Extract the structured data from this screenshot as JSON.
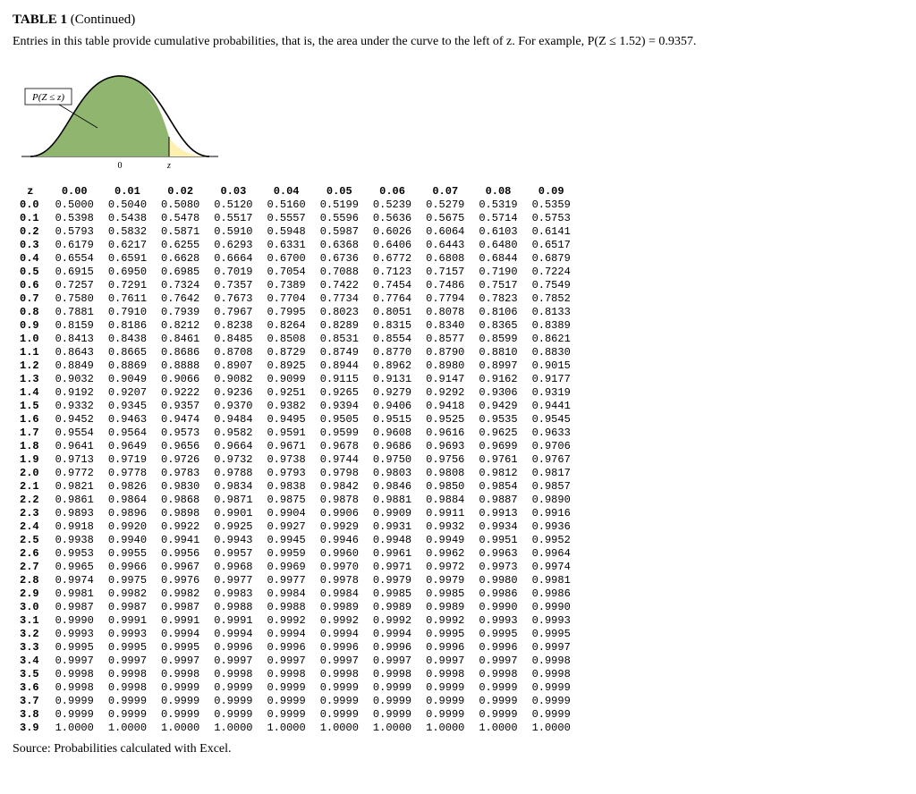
{
  "title_label": "TABLE 1",
  "title_paren": "(Continued)",
  "description": "Entries in this table provide cumulative probabilities, that is, the area under the curve to the left of z. For example, P(Z ≤ 1.52) = 0.9357.",
  "figure": {
    "caption": "P(Z ≤ z)",
    "axis_labels": {
      "zero": "0",
      "z": "z"
    },
    "fill_color": "#8fb56e",
    "tail_color": "#fff0b0",
    "stroke_color": "#000000",
    "axis_color": "#000000",
    "background": "#ffffff"
  },
  "table": {
    "header_corner": "z",
    "col_headers": [
      "0.00",
      "0.01",
      "0.02",
      "0.03",
      "0.04",
      "0.05",
      "0.06",
      "0.07",
      "0.08",
      "0.09"
    ],
    "row_labels": [
      "0.0",
      "0.1",
      "0.2",
      "0.3",
      "0.4",
      "0.5",
      "0.6",
      "0.7",
      "0.8",
      "0.9",
      "1.0",
      "1.1",
      "1.2",
      "1.3",
      "1.4",
      "1.5",
      "1.6",
      "1.7",
      "1.8",
      "1.9",
      "2.0",
      "2.1",
      "2.2",
      "2.3",
      "2.4",
      "2.5",
      "2.6",
      "2.7",
      "2.8",
      "2.9",
      "3.0",
      "3.1",
      "3.2",
      "3.3",
      "3.4",
      "3.5",
      "3.6",
      "3.7",
      "3.8",
      "3.9"
    ],
    "rows": [
      [
        "0.5000",
        "0.5040",
        "0.5080",
        "0.5120",
        "0.5160",
        "0.5199",
        "0.5239",
        "0.5279",
        "0.5319",
        "0.5359"
      ],
      [
        "0.5398",
        "0.5438",
        "0.5478",
        "0.5517",
        "0.5557",
        "0.5596",
        "0.5636",
        "0.5675",
        "0.5714",
        "0.5753"
      ],
      [
        "0.5793",
        "0.5832",
        "0.5871",
        "0.5910",
        "0.5948",
        "0.5987",
        "0.6026",
        "0.6064",
        "0.6103",
        "0.6141"
      ],
      [
        "0.6179",
        "0.6217",
        "0.6255",
        "0.6293",
        "0.6331",
        "0.6368",
        "0.6406",
        "0.6443",
        "0.6480",
        "0.6517"
      ],
      [
        "0.6554",
        "0.6591",
        "0.6628",
        "0.6664",
        "0.6700",
        "0.6736",
        "0.6772",
        "0.6808",
        "0.6844",
        "0.6879"
      ],
      [
        "0.6915",
        "0.6950",
        "0.6985",
        "0.7019",
        "0.7054",
        "0.7088",
        "0.7123",
        "0.7157",
        "0.7190",
        "0.7224"
      ],
      [
        "0.7257",
        "0.7291",
        "0.7324",
        "0.7357",
        "0.7389",
        "0.7422",
        "0.7454",
        "0.7486",
        "0.7517",
        "0.7549"
      ],
      [
        "0.7580",
        "0.7611",
        "0.7642",
        "0.7673",
        "0.7704",
        "0.7734",
        "0.7764",
        "0.7794",
        "0.7823",
        "0.7852"
      ],
      [
        "0.7881",
        "0.7910",
        "0.7939",
        "0.7967",
        "0.7995",
        "0.8023",
        "0.8051",
        "0.8078",
        "0.8106",
        "0.8133"
      ],
      [
        "0.8159",
        "0.8186",
        "0.8212",
        "0.8238",
        "0.8264",
        "0.8289",
        "0.8315",
        "0.8340",
        "0.8365",
        "0.8389"
      ],
      [
        "0.8413",
        "0.8438",
        "0.8461",
        "0.8485",
        "0.8508",
        "0.8531",
        "0.8554",
        "0.8577",
        "0.8599",
        "0.8621"
      ],
      [
        "0.8643",
        "0.8665",
        "0.8686",
        "0.8708",
        "0.8729",
        "0.8749",
        "0.8770",
        "0.8790",
        "0.8810",
        "0.8830"
      ],
      [
        "0.8849",
        "0.8869",
        "0.8888",
        "0.8907",
        "0.8925",
        "0.8944",
        "0.8962",
        "0.8980",
        "0.8997",
        "0.9015"
      ],
      [
        "0.9032",
        "0.9049",
        "0.9066",
        "0.9082",
        "0.9099",
        "0.9115",
        "0.9131",
        "0.9147",
        "0.9162",
        "0.9177"
      ],
      [
        "0.9192",
        "0.9207",
        "0.9222",
        "0.9236",
        "0.9251",
        "0.9265",
        "0.9279",
        "0.9292",
        "0.9306",
        "0.9319"
      ],
      [
        "0.9332",
        "0.9345",
        "0.9357",
        "0.9370",
        "0.9382",
        "0.9394",
        "0.9406",
        "0.9418",
        "0.9429",
        "0.9441"
      ],
      [
        "0.9452",
        "0.9463",
        "0.9474",
        "0.9484",
        "0.9495",
        "0.9505",
        "0.9515",
        "0.9525",
        "0.9535",
        "0.9545"
      ],
      [
        "0.9554",
        "0.9564",
        "0.9573",
        "0.9582",
        "0.9591",
        "0.9599",
        "0.9608",
        "0.9616",
        "0.9625",
        "0.9633"
      ],
      [
        "0.9641",
        "0.9649",
        "0.9656",
        "0.9664",
        "0.9671",
        "0.9678",
        "0.9686",
        "0.9693",
        "0.9699",
        "0.9706"
      ],
      [
        "0.9713",
        "0.9719",
        "0.9726",
        "0.9732",
        "0.9738",
        "0.9744",
        "0.9750",
        "0.9756",
        "0.9761",
        "0.9767"
      ],
      [
        "0.9772",
        "0.9778",
        "0.9783",
        "0.9788",
        "0.9793",
        "0.9798",
        "0.9803",
        "0.9808",
        "0.9812",
        "0.9817"
      ],
      [
        "0.9821",
        "0.9826",
        "0.9830",
        "0.9834",
        "0.9838",
        "0.9842",
        "0.9846",
        "0.9850",
        "0.9854",
        "0.9857"
      ],
      [
        "0.9861",
        "0.9864",
        "0.9868",
        "0.9871",
        "0.9875",
        "0.9878",
        "0.9881",
        "0.9884",
        "0.9887",
        "0.9890"
      ],
      [
        "0.9893",
        "0.9896",
        "0.9898",
        "0.9901",
        "0.9904",
        "0.9906",
        "0.9909",
        "0.9911",
        "0.9913",
        "0.9916"
      ],
      [
        "0.9918",
        "0.9920",
        "0.9922",
        "0.9925",
        "0.9927",
        "0.9929",
        "0.9931",
        "0.9932",
        "0.9934",
        "0.9936"
      ],
      [
        "0.9938",
        "0.9940",
        "0.9941",
        "0.9943",
        "0.9945",
        "0.9946",
        "0.9948",
        "0.9949",
        "0.9951",
        "0.9952"
      ],
      [
        "0.9953",
        "0.9955",
        "0.9956",
        "0.9957",
        "0.9959",
        "0.9960",
        "0.9961",
        "0.9962",
        "0.9963",
        "0.9964"
      ],
      [
        "0.9965",
        "0.9966",
        "0.9967",
        "0.9968",
        "0.9969",
        "0.9970",
        "0.9971",
        "0.9972",
        "0.9973",
        "0.9974"
      ],
      [
        "0.9974",
        "0.9975",
        "0.9976",
        "0.9977",
        "0.9977",
        "0.9978",
        "0.9979",
        "0.9979",
        "0.9980",
        "0.9981"
      ],
      [
        "0.9981",
        "0.9982",
        "0.9982",
        "0.9983",
        "0.9984",
        "0.9984",
        "0.9985",
        "0.9985",
        "0.9986",
        "0.9986"
      ],
      [
        "0.9987",
        "0.9987",
        "0.9987",
        "0.9988",
        "0.9988",
        "0.9989",
        "0.9989",
        "0.9989",
        "0.9990",
        "0.9990"
      ],
      [
        "0.9990",
        "0.9991",
        "0.9991",
        "0.9991",
        "0.9992",
        "0.9992",
        "0.9992",
        "0.9992",
        "0.9993",
        "0.9993"
      ],
      [
        "0.9993",
        "0.9993",
        "0.9994",
        "0.9994",
        "0.9994",
        "0.9994",
        "0.9994",
        "0.9995",
        "0.9995",
        "0.9995"
      ],
      [
        "0.9995",
        "0.9995",
        "0.9995",
        "0.9996",
        "0.9996",
        "0.9996",
        "0.9996",
        "0.9996",
        "0.9996",
        "0.9997"
      ],
      [
        "0.9997",
        "0.9997",
        "0.9997",
        "0.9997",
        "0.9997",
        "0.9997",
        "0.9997",
        "0.9997",
        "0.9997",
        "0.9998"
      ],
      [
        "0.9998",
        "0.9998",
        "0.9998",
        "0.9998",
        "0.9998",
        "0.9998",
        "0.9998",
        "0.9998",
        "0.9998",
        "0.9998"
      ],
      [
        "0.9998",
        "0.9998",
        "0.9999",
        "0.9999",
        "0.9999",
        "0.9999",
        "0.9999",
        "0.9999",
        "0.9999",
        "0.9999"
      ],
      [
        "0.9999",
        "0.9999",
        "0.9999",
        "0.9999",
        "0.9999",
        "0.9999",
        "0.9999",
        "0.9999",
        "0.9999",
        "0.9999"
      ],
      [
        "0.9999",
        "0.9999",
        "0.9999",
        "0.9999",
        "0.9999",
        "0.9999",
        "0.9999",
        "0.9999",
        "0.9999",
        "0.9999"
      ],
      [
        "1.0000",
        "1.0000",
        "1.0000",
        "1.0000",
        "1.0000",
        "1.0000",
        "1.0000",
        "1.0000",
        "1.0000",
        "1.0000"
      ]
    ],
    "font_family": "Courier New",
    "font_size_pt": 9
  },
  "source_text": "Source: Probabilities calculated with Excel."
}
